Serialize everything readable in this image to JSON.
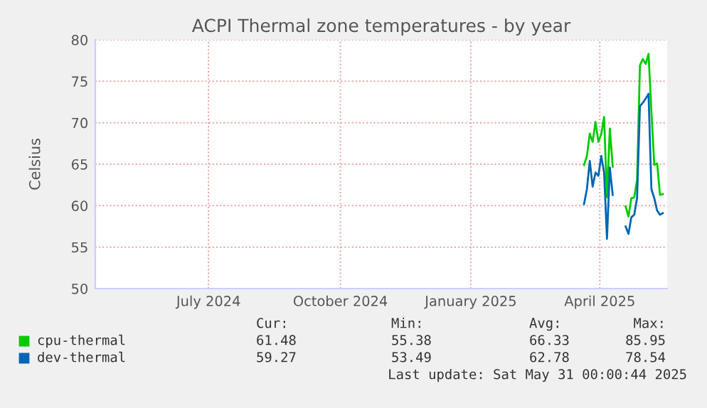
{
  "chart_data": {
    "type": "line",
    "title": "ACPI Thermal zone temperatures - by year",
    "ylabel": "Celsius",
    "x": [
      "2025-04-03",
      "2025-04-05",
      "2025-04-07",
      "2025-04-09",
      "2025-04-11",
      "2025-04-13",
      "2025-04-15",
      "2025-04-17",
      "2025-04-19",
      "2025-04-21",
      "2025-04-23",
      "2025-04-27",
      "2025-05-02",
      "2025-05-04",
      "2025-05-06",
      "2025-05-08",
      "2025-05-10",
      "2025-05-12",
      "2025-05-14",
      "2025-05-16",
      "2025-05-18",
      "2025-05-20",
      "2025-05-22",
      "2025-05-24",
      "2025-05-26",
      "2025-05-28"
    ],
    "series": [
      {
        "name": "cpu-thermal",
        "color": "#00cc00",
        "values": [
          64.9,
          66.0,
          68.7,
          67.7,
          70.1,
          67.7,
          68.6,
          70.7,
          61.0,
          69.3,
          64.7,
          null,
          59.9,
          58.7,
          60.9,
          61.0,
          63.1,
          76.9,
          77.7,
          77.1,
          78.3,
          71.4,
          64.9,
          65.1,
          61.3,
          61.4
        ]
      },
      {
        "name": "dev-thermal",
        "color": "#0066b3",
        "values": [
          60.2,
          62.0,
          65.4,
          62.3,
          64.0,
          63.6,
          66.0,
          64.0,
          56.0,
          64.6,
          61.3,
          null,
          57.5,
          56.6,
          58.6,
          58.9,
          60.9,
          72.0,
          72.4,
          72.9,
          73.5,
          62.0,
          60.9,
          59.4,
          58.9,
          59.1
        ]
      }
    ],
    "xlim": [
      "2024-04-27",
      "2025-05-31"
    ],
    "xticks": [
      {
        "value": "2024-07-15",
        "label": "July 2024"
      },
      {
        "value": "2024-10-15",
        "label": "October 2024"
      },
      {
        "value": "2025-01-14",
        "label": "January 2025"
      },
      {
        "value": "2025-04-14",
        "label": "April 2025"
      }
    ],
    "ylim": [
      50,
      80
    ],
    "yticks": [
      50,
      55,
      60,
      65,
      70,
      75,
      80
    ],
    "grid": true,
    "legend": "bottom left",
    "marker": "none",
    "line_style": "solid",
    "annotations": [
      "Cur:",
      "Min:",
      "Avg:",
      "Max:",
      "61.48",
      "55.38",
      "66.33",
      "85.95",
      "59.27",
      "53.49",
      "62.78",
      "78.54",
      "Last update: Sat May 31 00:00:44 2025"
    ]
  }
}
